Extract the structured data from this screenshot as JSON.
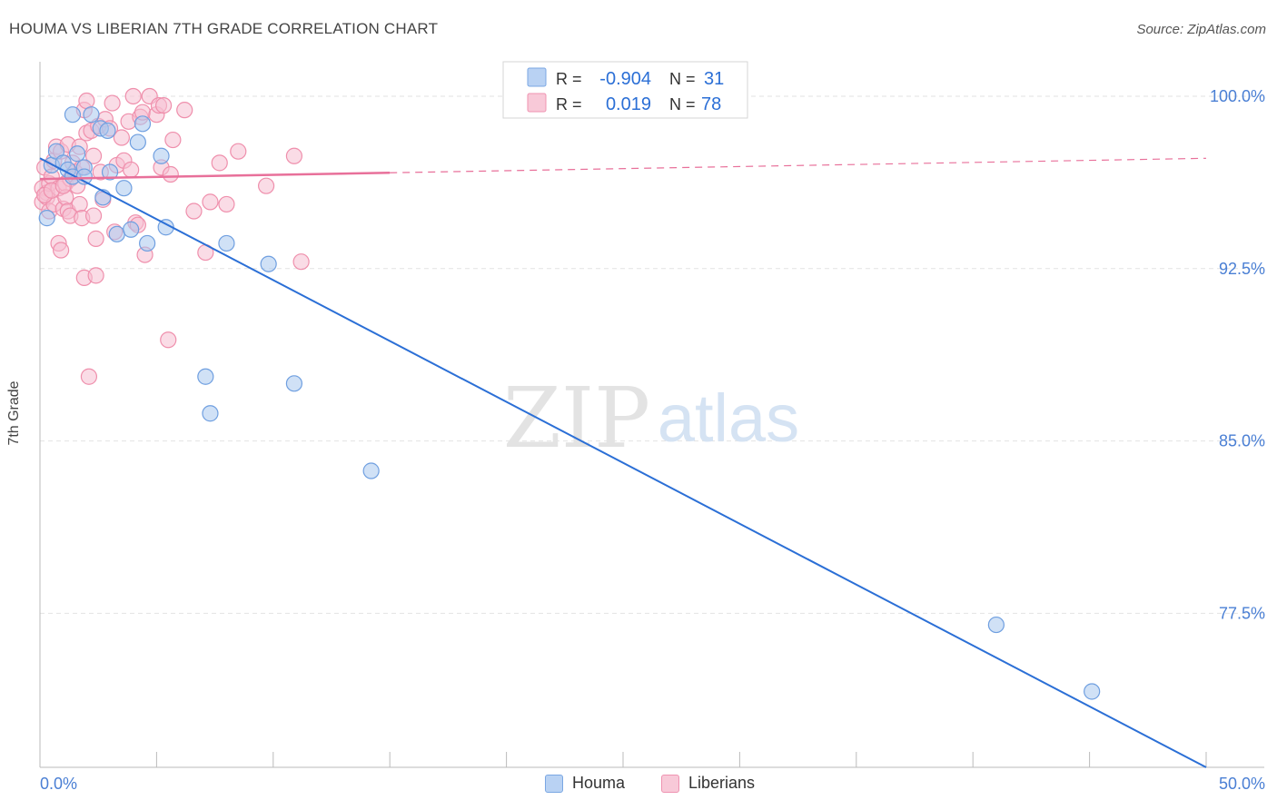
{
  "chart_data": {
    "type": "scatter",
    "title": "HOUMA VS LIBERIAN 7TH GRADE CORRELATION CHART",
    "source": "Source: ZipAtlas.com",
    "ylabel": "7th Grade",
    "xlim": [
      0,
      50
    ],
    "ylim": [
      70.8,
      101.5
    ],
    "x_tick_labels": {
      "min": "0.0%",
      "max": "50.0%"
    },
    "y_ticks": [
      {
        "value": 100.0,
        "label": "100.0%"
      },
      {
        "value": 92.5,
        "label": "92.5%"
      },
      {
        "value": 85.0,
        "label": "85.0%"
      },
      {
        "value": 77.5,
        "label": "77.5%"
      }
    ],
    "watermark": {
      "zip": "ZIP",
      "atlas": "atlas"
    },
    "series": [
      {
        "name": "Houma",
        "color": "#6f9fe0",
        "fill": "#a9c8ef",
        "line_color": "#2b6fd6",
        "R": "-0.904",
        "N": "31",
        "trend": {
          "x1": 0.0,
          "y1": 97.3,
          "x2": 50.0,
          "y2": 70.8
        },
        "points": [
          [
            0.3,
            94.7
          ],
          [
            0.5,
            97.0
          ],
          [
            0.7,
            97.6
          ],
          [
            1.0,
            97.1
          ],
          [
            1.2,
            96.8
          ],
          [
            1.4,
            96.5
          ],
          [
            1.4,
            99.2
          ],
          [
            1.6,
            97.5
          ],
          [
            1.9,
            96.9
          ],
          [
            1.9,
            96.5
          ],
          [
            2.2,
            99.2
          ],
          [
            2.6,
            98.6
          ],
          [
            2.7,
            95.6
          ],
          [
            2.9,
            98.5
          ],
          [
            3.0,
            96.7
          ],
          [
            3.3,
            94.0
          ],
          [
            3.6,
            96.0
          ],
          [
            3.9,
            94.2
          ],
          [
            4.2,
            98.0
          ],
          [
            4.4,
            98.8
          ],
          [
            4.6,
            93.6
          ],
          [
            5.2,
            97.4
          ],
          [
            5.4,
            94.3
          ],
          [
            7.1,
            87.8
          ],
          [
            7.3,
            86.2
          ],
          [
            8.0,
            93.6
          ],
          [
            9.8,
            92.7
          ],
          [
            10.9,
            87.5
          ],
          [
            14.2,
            83.7
          ],
          [
            41.0,
            77.0
          ],
          [
            45.1,
            74.1
          ]
        ]
      },
      {
        "name": "Liberians",
        "color": "#ef8fac",
        "fill": "#f6c0d1",
        "line_color": "#e8709a",
        "R": "0.019",
        "N": "78",
        "trend": {
          "x1": 0.0,
          "y1": 96.4,
          "x2": 50.0,
          "y2": 97.3,
          "solid_until": 15.0
        },
        "points": [
          [
            0.1,
            96.0
          ],
          [
            0.1,
            95.4
          ],
          [
            0.2,
            96.9
          ],
          [
            0.3,
            95.8
          ],
          [
            0.3,
            95.6
          ],
          [
            0.4,
            96.2
          ],
          [
            0.4,
            95.0
          ],
          [
            0.5,
            96.5
          ],
          [
            0.6,
            97.2
          ],
          [
            0.6,
            95.3
          ],
          [
            0.7,
            97.8
          ],
          [
            0.8,
            96.0
          ],
          [
            0.8,
            93.6
          ],
          [
            0.9,
            97.6
          ],
          [
            0.9,
            93.3
          ],
          [
            1.0,
            95.1
          ],
          [
            1.1,
            96.2
          ],
          [
            1.1,
            95.6
          ],
          [
            1.2,
            97.9
          ],
          [
            1.2,
            95.0
          ],
          [
            1.3,
            96.4
          ],
          [
            1.3,
            94.8
          ],
          [
            1.4,
            97.1
          ],
          [
            1.5,
            96.7
          ],
          [
            1.6,
            96.1
          ],
          [
            1.7,
            97.8
          ],
          [
            1.7,
            95.3
          ],
          [
            1.8,
            94.7
          ],
          [
            1.8,
            96.9
          ],
          [
            1.9,
            92.1
          ],
          [
            1.9,
            99.4
          ],
          [
            2.0,
            99.8
          ],
          [
            2.0,
            98.4
          ],
          [
            2.1,
            87.8
          ],
          [
            2.2,
            98.5
          ],
          [
            2.3,
            97.4
          ],
          [
            2.3,
            94.8
          ],
          [
            2.4,
            92.2
          ],
          [
            2.4,
            93.8
          ],
          [
            2.5,
            98.7
          ],
          [
            2.6,
            96.7
          ],
          [
            2.7,
            95.5
          ],
          [
            2.8,
            99.0
          ],
          [
            3.0,
            98.6
          ],
          [
            3.1,
            99.7
          ],
          [
            3.2,
            94.1
          ],
          [
            3.3,
            97.0
          ],
          [
            3.5,
            98.2
          ],
          [
            3.6,
            97.2
          ],
          [
            3.8,
            98.9
          ],
          [
            3.9,
            96.8
          ],
          [
            4.0,
            100.0
          ],
          [
            4.1,
            94.5
          ],
          [
            4.2,
            94.4
          ],
          [
            4.3,
            99.1
          ],
          [
            4.4,
            99.3
          ],
          [
            4.5,
            93.1
          ],
          [
            4.7,
            100.0
          ],
          [
            5.0,
            99.2
          ],
          [
            5.1,
            99.6
          ],
          [
            5.2,
            96.9
          ],
          [
            5.3,
            99.6
          ],
          [
            5.5,
            89.4
          ],
          [
            5.6,
            96.6
          ],
          [
            5.7,
            98.1
          ],
          [
            6.2,
            99.4
          ],
          [
            6.6,
            95.0
          ],
          [
            7.1,
            93.2
          ],
          [
            7.3,
            95.4
          ],
          [
            7.7,
            97.1
          ],
          [
            8.0,
            95.3
          ],
          [
            8.5,
            97.6
          ],
          [
            9.7,
            96.1
          ],
          [
            10.9,
            97.4
          ],
          [
            11.2,
            92.8
          ],
          [
            0.2,
            95.7
          ],
          [
            0.5,
            95.9
          ],
          [
            1.0,
            96.1
          ]
        ]
      }
    ]
  }
}
